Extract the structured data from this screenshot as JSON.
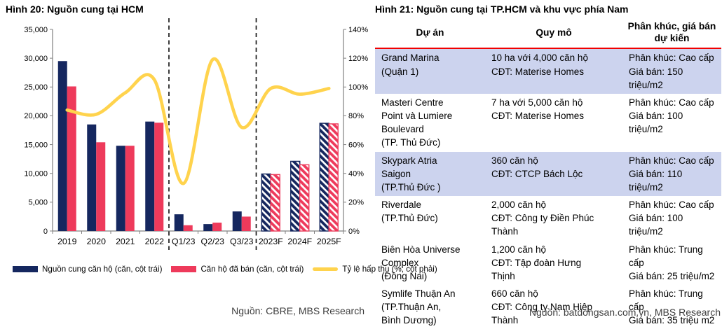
{
  "figure20": {
    "title": "Hình 20: Nguồn cung tại HCM",
    "source": "Nguồn: CBRE, MBS Research",
    "legend": [
      {
        "label": "Nguồn cung căn hộ (căn, cột trái)",
        "color": "#15275f",
        "swatch": "rect"
      },
      {
        "label": "Căn hộ đã bán (căn, cột trái)",
        "color": "#ee3a5b",
        "swatch": "rect"
      },
      {
        "label": "Tỷ lệ hấp thụ (%, cột phải)",
        "color": "#ffd34d",
        "swatch": "line"
      }
    ]
  },
  "chart_data": {
    "type": "bar",
    "subtype": "grouped bars with overlay line (dual axis)",
    "title": "Hình 20: Nguồn cung tại HCM",
    "categories": [
      "2019",
      "2020",
      "2021",
      "2022",
      "Q1/23",
      "Q2/23",
      "Q3/23",
      "2023F",
      "2024F",
      "2025F"
    ],
    "series": [
      {
        "name": "Nguồn cung căn hộ (căn, cột trái)",
        "type": "bar",
        "axis": "left",
        "color": "#15275f",
        "values": [
          29500,
          18500,
          14800,
          19000,
          2900,
          1200,
          3400,
          9900,
          12100,
          18700
        ],
        "hatched_from_index": 7
      },
      {
        "name": "Căn hộ đã bán (căn, cột trái)",
        "type": "bar",
        "axis": "left",
        "color": "#ee3a5b",
        "values": [
          25100,
          15400,
          14800,
          18800,
          1000,
          1450,
          2500,
          9800,
          11500,
          18600
        ],
        "hatched_from_index": 7
      },
      {
        "name": "Tỷ lệ hấp thụ (%, cột phải)",
        "type": "line",
        "axis": "right",
        "color": "#ffd34d",
        "values": [
          84,
          81,
          96,
          105,
          33,
          119,
          72,
          99,
          95,
          99
        ]
      }
    ],
    "left_axis": {
      "min": 0,
      "max": 35000,
      "step": 5000,
      "tick_labels": [
        "0",
        "5,000",
        "10,000",
        "15,000",
        "20,000",
        "25,000",
        "30,000",
        "35,000"
      ]
    },
    "right_axis": {
      "min": 0,
      "max": 140,
      "step": 20,
      "tick_labels": [
        "0%",
        "20%",
        "40%",
        "60%",
        "80%",
        "100%",
        "120%",
        "140%"
      ]
    },
    "separators_after_index": [
      3,
      6
    ],
    "forecast_categories": [
      "2023F",
      "2024F",
      "2025F"
    ],
    "grid": false,
    "legend_position": "bottom"
  },
  "figure21": {
    "title": "Hình 21: Nguồn cung tại TP.HCM và khu vực phía Nam",
    "source": "Nguồn: batdongsan.com.vn, MBS Research",
    "table": {
      "headers": [
        "Dự án",
        "Quy mô",
        [
          "Phân khúc, giá bán",
          "dự kiến"
        ]
      ],
      "rows": [
        {
          "highlight": true,
          "project": [
            "Grand Marina",
            "(Quận 1)"
          ],
          "scale": [
            "10 ha với 4,000 căn hộ",
            "CĐT: Materise Homes"
          ],
          "segment": [
            "Phân khúc: Cao cấp",
            "Giá bán: 150",
            "triệu/m2"
          ]
        },
        {
          "highlight": false,
          "project": [
            "Masteri Centre",
            "Point và Lumiere",
            "Boulevard",
            "(TP. Thủ Đức)"
          ],
          "scale": [
            "7 ha với 5,000 căn hộ",
            "CĐT: Materise Homes"
          ],
          "segment": [
            "Phân khúc: Cao cấp",
            "Giá bán: 100",
            "triệu/m2"
          ]
        },
        {
          "highlight": true,
          "project": [
            "Skypark Atria",
            "Saigon",
            "(TP.Thủ Đức )"
          ],
          "scale": [
            "360 căn hộ",
            "CĐT: CTCP Bách Lộc"
          ],
          "segment": [
            "Phân khúc: Cao cấp",
            "Giá bán: 110",
            "triệu/m2"
          ]
        },
        {
          "highlight": false,
          "project": [
            "Riverdale",
            "(TP.Thủ Đức)"
          ],
          "scale": [
            "2,000 căn hộ",
            "CĐT: Công ty Điền Phúc",
            "Thành"
          ],
          "segment": [
            "Phân khúc: Cao cấp",
            "Giá bán: 100",
            "triệu/m2"
          ]
        },
        {
          "highlight": false,
          "project": [
            "Biên Hòa Universe",
            "Complex",
            "(Đồng Nai)"
          ],
          "scale": [
            "1,200 căn hộ",
            "CĐT: Tập đoàn Hưng",
            "Thịnh"
          ],
          "segment": [
            "Phân khúc: Trung",
            "cấp",
            "Giá bán: 25 triệu/m2"
          ]
        },
        {
          "highlight": false,
          "project": [
            "Symlife Thuận An",
            "(TP.Thuận An,",
            "Bình Dương)"
          ],
          "scale": [
            "660 căn hộ",
            "CĐT: Công ty Nam Hiệp",
            "Thành"
          ],
          "segment": [
            "Phân khúc: Trung",
            "cấp",
            "Giá bán: 35 triệu m2"
          ]
        }
      ]
    }
  },
  "colors": {
    "bar_supply": "#15275f",
    "bar_sold": "#ee3a5b",
    "absorption_line": "#ffd34d",
    "row_highlight": "#ccd3ee",
    "header_rule": "#f10000",
    "axis": "#808080",
    "separator": "#1a1a1a"
  }
}
